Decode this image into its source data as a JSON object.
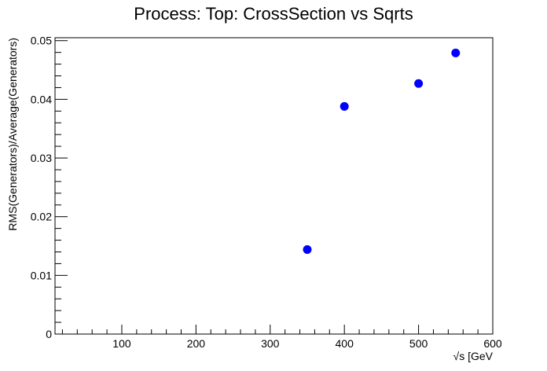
{
  "chart_data": {
    "type": "scatter",
    "title": "Process: Top: CrossSection vs Sqrts",
    "xlabel": "√s [GeV",
    "ylabel": "RMS(Generators)/Average(Generators)",
    "xlim": [
      10,
      600
    ],
    "ylim": [
      0,
      0.0505
    ],
    "x_ticks": [
      100,
      200,
      300,
      400,
      500,
      600
    ],
    "x_tick_labels": [
      "100",
      "200",
      "300",
      "400",
      "500",
      "600"
    ],
    "y_ticks": [
      0,
      0.01,
      0.02,
      0.03,
      0.04,
      0.05
    ],
    "y_tick_labels": [
      "0",
      "0.01",
      "0.02",
      "0.03",
      "0.04",
      "0.05"
    ],
    "grid": false,
    "legend": "none",
    "series": [
      {
        "color": "#0000ff",
        "points": [
          {
            "x": 350,
            "y": 0.0144
          },
          {
            "x": 400,
            "y": 0.0388
          },
          {
            "x": 500,
            "y": 0.0427
          },
          {
            "x": 550,
            "y": 0.0479
          }
        ]
      }
    ]
  }
}
